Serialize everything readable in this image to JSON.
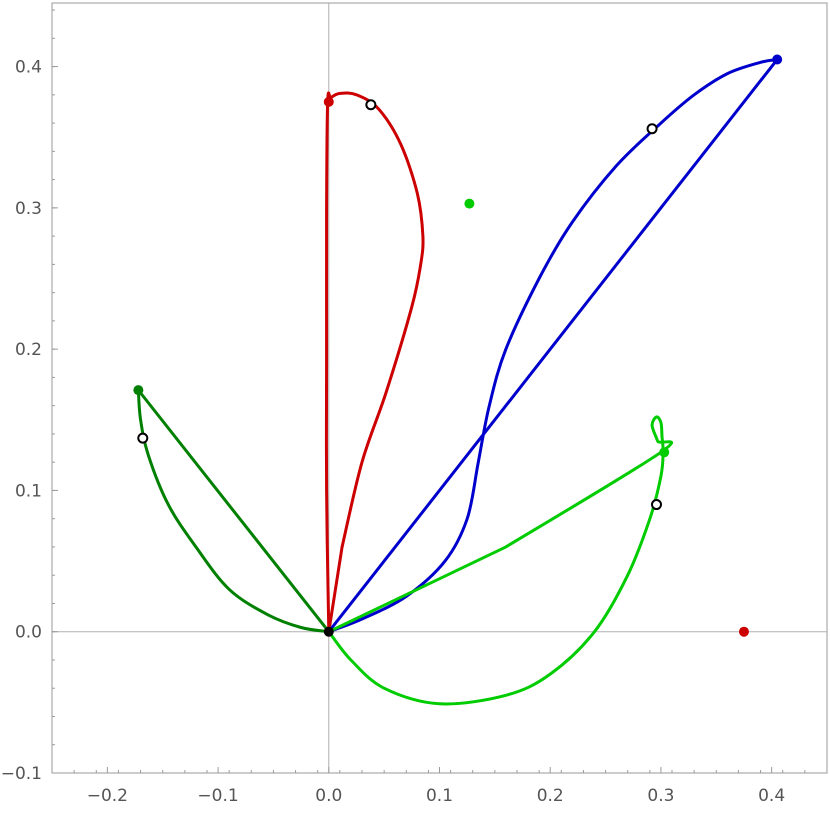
{
  "chart_data": {
    "type": "line",
    "title": "",
    "xlabel": "",
    "ylabel": "",
    "xlim": [
      -0.25,
      0.45
    ],
    "ylim": [
      -0.1,
      0.445
    ],
    "x_ticks": [
      -0.2,
      -0.1,
      0.0,
      0.1,
      0.2,
      0.3,
      0.4
    ],
    "x_tick_labels": [
      "−0.2",
      "−0.1",
      "0.0",
      "0.1",
      "0.2",
      "0.3",
      "0.4"
    ],
    "y_ticks": [
      -0.1,
      0.0,
      0.1,
      0.2,
      0.3,
      0.4
    ],
    "y_tick_labels": [
      "−0.1",
      "0.0",
      "0.1",
      "0.2",
      "0.3",
      "0.4"
    ],
    "grid": false,
    "axes_lines_at_zero": true,
    "series": [
      {
        "color": "#cc0000",
        "points": [
          [
            0.0,
            0.0
          ],
          [
            0.012,
            0.06
          ],
          [
            0.03,
            0.12
          ],
          [
            0.052,
            0.17
          ],
          [
            0.075,
            0.23
          ],
          [
            0.083,
            0.26
          ],
          [
            0.085,
            0.28
          ],
          [
            0.08,
            0.31
          ],
          [
            0.065,
            0.345
          ],
          [
            0.045,
            0.37
          ],
          [
            0.025,
            0.38
          ],
          [
            0.01,
            0.381
          ],
          [
            0.002,
            0.378
          ],
          [
            -0.001,
            0.375
          ],
          [
            -0.002,
            0.3
          ],
          [
            -0.002,
            0.2
          ],
          [
            -0.002,
            0.1
          ],
          [
            0.0,
            0.0
          ]
        ]
      },
      {
        "color": "#0000cc",
        "points": [
          [
            0.0,
            0.0
          ],
          [
            0.405,
            0.405
          ],
          [
            0.39,
            0.403
          ],
          [
            0.36,
            0.395
          ],
          [
            0.33,
            0.38
          ],
          [
            0.3,
            0.36
          ],
          [
            0.26,
            0.33
          ],
          [
            0.22,
            0.29
          ],
          [
            0.19,
            0.25
          ],
          [
            0.16,
            0.2
          ],
          [
            0.145,
            0.16
          ],
          [
            0.135,
            0.12
          ],
          [
            0.125,
            0.08
          ],
          [
            0.105,
            0.05
          ],
          [
            0.07,
            0.025
          ],
          [
            0.03,
            0.009
          ],
          [
            0.0,
            0.0
          ]
        ]
      },
      {
        "color": "#00cc00",
        "points": [
          [
            0.0,
            0.0
          ],
          [
            0.16,
            0.06
          ],
          [
            0.3,
            0.127
          ],
          [
            0.297,
            0.135
          ],
          [
            0.292,
            0.146
          ],
          [
            0.296,
            0.152
          ],
          [
            0.3,
            0.148
          ],
          [
            0.301,
            0.138
          ],
          [
            0.302,
            0.127
          ],
          [
            0.3,
            0.11
          ],
          [
            0.29,
            0.08
          ],
          [
            0.27,
            0.04
          ],
          [
            0.24,
            0.0
          ],
          [
            0.2,
            -0.03
          ],
          [
            0.16,
            -0.045
          ],
          [
            0.1,
            -0.051
          ],
          [
            0.05,
            -0.04
          ],
          [
            0.02,
            -0.02
          ],
          [
            0.0,
            0.0
          ]
        ]
      },
      {
        "color": "#008000",
        "points": [
          [
            0.0,
            0.0
          ],
          [
            -0.172,
            0.171
          ],
          [
            -0.17,
            0.15
          ],
          [
            -0.163,
            0.125
          ],
          [
            -0.145,
            0.09
          ],
          [
            -0.12,
            0.06
          ],
          [
            -0.09,
            0.03
          ],
          [
            -0.055,
            0.012
          ],
          [
            -0.025,
            0.003
          ],
          [
            0.0,
            0.0
          ]
        ]
      }
    ],
    "points": [
      {
        "x": 0.0,
        "y": 0.375,
        "color": "#cc0000",
        "style": "filled"
      },
      {
        "x": 0.375,
        "y": 0.0,
        "color": "#cc0000",
        "style": "filled"
      },
      {
        "x": 0.405,
        "y": 0.405,
        "color": "#0000cc",
        "style": "filled"
      },
      {
        "x": 0.127,
        "y": 0.303,
        "color": "#00cc00",
        "style": "filled"
      },
      {
        "x": 0.303,
        "y": 0.127,
        "color": "#00cc00",
        "style": "filled"
      },
      {
        "x": -0.172,
        "y": 0.171,
        "color": "#008000",
        "style": "filled"
      },
      {
        "x": 0.0,
        "y": 0.0,
        "color": "#000000",
        "style": "filled"
      },
      {
        "x": 0.038,
        "y": 0.373,
        "color": "#000000",
        "style": "open"
      },
      {
        "x": 0.292,
        "y": 0.356,
        "color": "#000000",
        "style": "open"
      },
      {
        "x": 0.296,
        "y": 0.09,
        "color": "#000000",
        "style": "open"
      },
      {
        "x": -0.168,
        "y": 0.137,
        "color": "#000000",
        "style": "open"
      }
    ]
  }
}
